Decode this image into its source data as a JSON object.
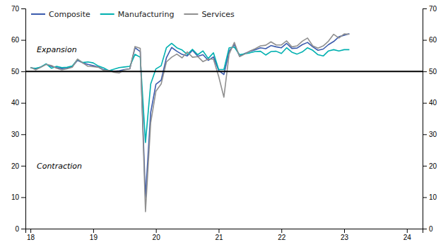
{
  "chart_data": {
    "type": "line",
    "x": [
      2018,
      2018.0833333333,
      2018.1666666667,
      2018.25,
      2018.3333333333,
      2018.4166666667,
      2018.5,
      2018.5833333333,
      2018.6666666667,
      2018.75,
      2018.8333333333,
      2018.9166666667,
      2019,
      2019.0833333333,
      2019.1666666667,
      2019.25,
      2019.3333333333,
      2019.4166666667,
      2019.5,
      2019.5833333333,
      2019.6666666667,
      2019.75,
      2019.8333333333,
      2019.9166666667,
      2020,
      2020.0833333333,
      2020.1666666667,
      2020.25,
      2020.3333333333,
      2020.4166666667,
      2020.5,
      2020.5833333333,
      2020.6666666667,
      2020.75,
      2020.8333333333,
      2020.9166666667,
      2021,
      2021.0833333333,
      2021.1666666667,
      2021.25,
      2021.3333333333,
      2021.4166666667,
      2021.5,
      2021.5833333333,
      2021.6666666667,
      2021.75,
      2021.8333333333,
      2021.9166666667,
      2022,
      2022.0833333333,
      2022.1666666667,
      2022.25,
      2022.3333333333,
      2022.4166666667,
      2022.5,
      2022.5833333333,
      2022.6666666667,
      2022.75,
      2022.8333333333,
      2022.9166666667,
      2023,
      2023.0833333333
    ],
    "series": [
      {
        "name": "Composite",
        "color": "#3B5BAD",
        "values": [
          51.2,
          50.8,
          51.4,
          52.3,
          51.6,
          51.2,
          50.9,
          51.0,
          51.5,
          53.5,
          52.7,
          52.2,
          51.8,
          51.4,
          50.5,
          50.3,
          50.0,
          50.2,
          50.6,
          50.8,
          57.5,
          56.3,
          10.0,
          37.0,
          45.9,
          47.2,
          54.3,
          57.6,
          56.4,
          55.4,
          54.9,
          56.7,
          54.8,
          55.3,
          53.5,
          54.6,
          50.3,
          49.0,
          56.4,
          58.5,
          54.8,
          55.7,
          56.4,
          56.9,
          57.5,
          57.2,
          58.2,
          57.8,
          57.5,
          58.9,
          57.3,
          57.4,
          58.5,
          59.2,
          57.8,
          56.7,
          57.1,
          58.5,
          59.5,
          61.0,
          61.5,
          62.0
        ]
      },
      {
        "name": "Manufacturing",
        "color": "#00B0B0",
        "values": [
          51.1,
          51.0,
          51.4,
          52.4,
          51.0,
          51.6,
          51.2,
          51.3,
          51.7,
          53.8,
          52.8,
          53.0,
          52.7,
          51.7,
          51.1,
          50.2,
          50.7,
          51.2,
          51.4,
          51.6,
          55.4,
          54.5,
          27.4,
          46.0,
          50.8,
          51.8,
          57.5,
          58.9,
          57.5,
          56.8,
          55.4,
          57.0,
          55.3,
          56.5,
          54.1,
          55.9,
          50.6,
          50.6,
          57.5,
          57.7,
          55.3,
          55.6,
          55.9,
          56.3,
          56.4,
          55.2,
          56.3,
          56.4,
          55.7,
          57.5,
          56.1,
          55.5,
          56.2,
          57.5,
          56.7,
          55.3,
          54.9,
          56.5,
          56.9,
          56.5,
          56.9,
          56.9
        ]
      },
      {
        "name": "Services",
        "color": "#909090",
        "values": [
          51.3,
          50.5,
          51.3,
          52.2,
          51.9,
          51.0,
          50.5,
          50.8,
          51.3,
          53.9,
          52.7,
          51.6,
          51.5,
          51.3,
          50.3,
          50.3,
          49.7,
          49.5,
          50.5,
          50.8,
          57.9,
          57.3,
          5.4,
          33.7,
          43.7,
          46.0,
          53.0,
          54.5,
          55.5,
          54.3,
          56.2,
          54.5,
          54.7,
          53.1,
          53.9,
          53.9,
          48.4,
          41.8,
          55.5,
          59.2,
          54.7,
          55.5,
          56.5,
          57.2,
          58.1,
          58.3,
          59.4,
          58.4,
          58.4,
          59.7,
          57.8,
          58.1,
          59.6,
          60.6,
          58.1,
          57.4,
          58.1,
          59.6,
          61.8,
          60.6,
          61.9,
          61.8
        ]
      }
    ],
    "xlim": [
      2017.92,
      2024.25
    ],
    "xticks": [
      {
        "value": 2018,
        "label": "18"
      },
      {
        "value": 2019,
        "label": "19"
      },
      {
        "value": 2020,
        "label": "20"
      },
      {
        "value": 2021,
        "label": "21"
      },
      {
        "value": 2022,
        "label": "22"
      },
      {
        "value": 2023,
        "label": "23"
      },
      {
        "value": 2024,
        "label": "24"
      }
    ],
    "ylim": [
      0,
      70
    ],
    "yticks": [
      0,
      10,
      20,
      30,
      40,
      50,
      60,
      70
    ],
    "y2lim": [
      0,
      70
    ],
    "y2ticks": [
      0,
      10,
      20,
      30,
      40,
      50,
      60,
      70
    ],
    "threshold": 50,
    "annotations": [
      {
        "text": "Expansion",
        "x": 2018.1,
        "y": 57
      },
      {
        "text": "Contraction",
        "x": 2018.1,
        "y": 20
      }
    ],
    "legend": "upper left",
    "grid": false
  }
}
